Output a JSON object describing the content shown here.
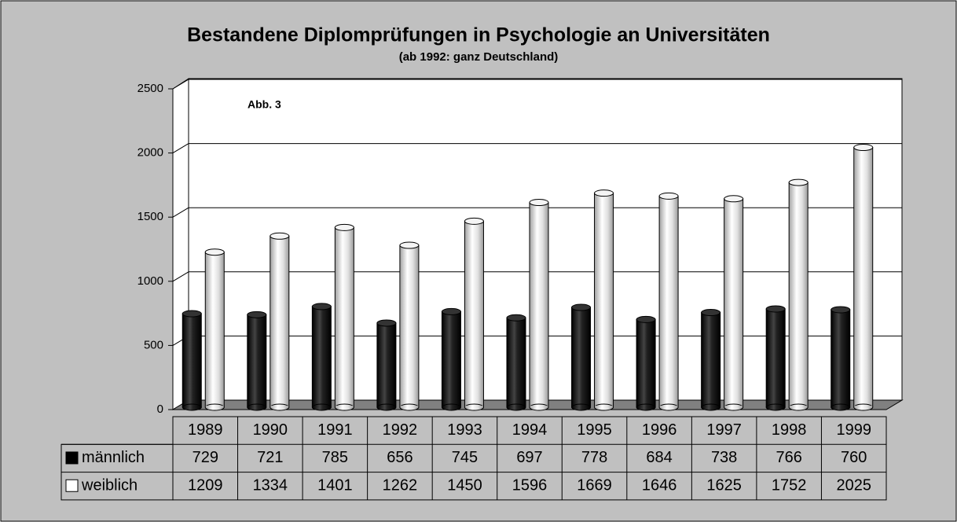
{
  "chart_data": {
    "type": "bar",
    "title": "Bestandene Diplomprüfungen in Psychologie an Universitäten",
    "subtitle": "(ab 1992: ganz Deutschland)",
    "annotation": "Abb. 3",
    "categories": [
      "1989",
      "1990",
      "1991",
      "1992",
      "1993",
      "1994",
      "1995",
      "1996",
      "1997",
      "1998",
      "1999"
    ],
    "series": [
      {
        "name": "männlich",
        "color": "#000000",
        "values": [
          729,
          721,
          785,
          656,
          745,
          697,
          778,
          684,
          738,
          766,
          760
        ]
      },
      {
        "name": "weiblich",
        "color": "#ffffff",
        "values": [
          1209,
          1334,
          1401,
          1262,
          1450,
          1596,
          1669,
          1646,
          1625,
          1752,
          2025
        ]
      }
    ],
    "ylim": [
      0,
      2500
    ],
    "yticks": [
      0,
      500,
      1000,
      1500,
      2000,
      2500
    ],
    "grid": true
  }
}
